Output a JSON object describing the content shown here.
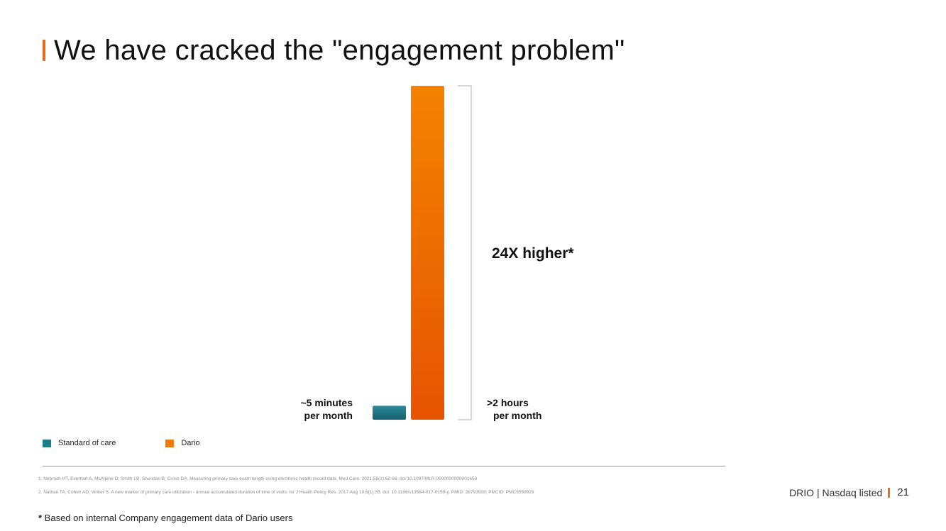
{
  "slide": {
    "title": "We have cracked the \"engagement problem\"",
    "accent_color": "#ea6a1c"
  },
  "chart_data": {
    "type": "bar",
    "categories": [
      "Standard of care",
      "Dario"
    ],
    "values_minutes_per_month": [
      5,
      120
    ],
    "series": [
      {
        "name": "Standard of care",
        "value": 5,
        "color": "#1e7d8d"
      },
      {
        "name": "Dario",
        "value": 120,
        "color": "#f07a0a"
      }
    ],
    "ylim": [
      0,
      120
    ],
    "labels": {
      "standard_line1": "~5 minutes",
      "standard_line2": "per month",
      "dario_line1": ">2 hours",
      "dario_line2": "per month",
      "multiplier": "24X higher*"
    },
    "legend_position": "bottom-left",
    "grid": false
  },
  "footnotes": {
    "ref1": "1. Neprash HT, Everhart A, McAlpine D, Smith LB, Sheridan B, Cross DA. Measuring primary care exam length using electronic health record data. Med Care. 2021;59(1):62-66. doi:10.1097/MLR.0000000000001450",
    "ref2": "2. Nathan TA, Cohen AD, Vinker S. A new marker of primary care utilization - annual accumulated duration of time of visits. Isr J Health Policy Res. 2017 Aug 10;6(1):35. doi: 10.1186/s13584-017-0159-y. PMID: 28793928; PMCID: PMC5550929",
    "asterisk": "*",
    "note": " Based on internal Company engagement data of Dario users"
  },
  "footer": {
    "brand": "DRIO | Nasdaq listed",
    "page": "21"
  }
}
